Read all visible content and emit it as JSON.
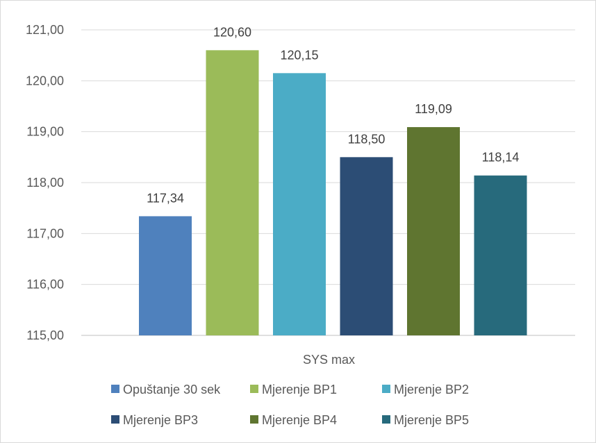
{
  "chart_data": {
    "type": "bar",
    "categories": [
      "SYS max"
    ],
    "series": [
      {
        "name": "Opuštanje 30 sek",
        "values": [
          117.34
        ],
        "label": "117,34",
        "color": "#4f81bd"
      },
      {
        "name": "Mjerenje BP1",
        "values": [
          120.6
        ],
        "label": "120,60",
        "color": "#9bbb59"
      },
      {
        "name": "Mjerenje BP2",
        "values": [
          120.15
        ],
        "label": "120,15",
        "color": "#4bacc6"
      },
      {
        "name": "Mjerenje BP3",
        "values": [
          118.5
        ],
        "label": "118,50",
        "color": "#2c4d75"
      },
      {
        "name": "Mjerenje BP4",
        "values": [
          119.09
        ],
        "label": "119,09",
        "color": "#5f7530"
      },
      {
        "name": "Mjerenje BP5",
        "values": [
          118.14
        ],
        "label": "118,14",
        "color": "#276a7c"
      }
    ],
    "ylim": [
      115,
      121
    ],
    "yticks": [
      {
        "value": 115,
        "label": "115,00"
      },
      {
        "value": 116,
        "label": "116,00"
      },
      {
        "value": 117,
        "label": "117,00"
      },
      {
        "value": 118,
        "label": "118,00"
      },
      {
        "value": 119,
        "label": "119,00"
      },
      {
        "value": 120,
        "label": "120,00"
      },
      {
        "value": 121,
        "label": "121,00"
      }
    ],
    "grid": true,
    "legend_position": "bottom"
  }
}
